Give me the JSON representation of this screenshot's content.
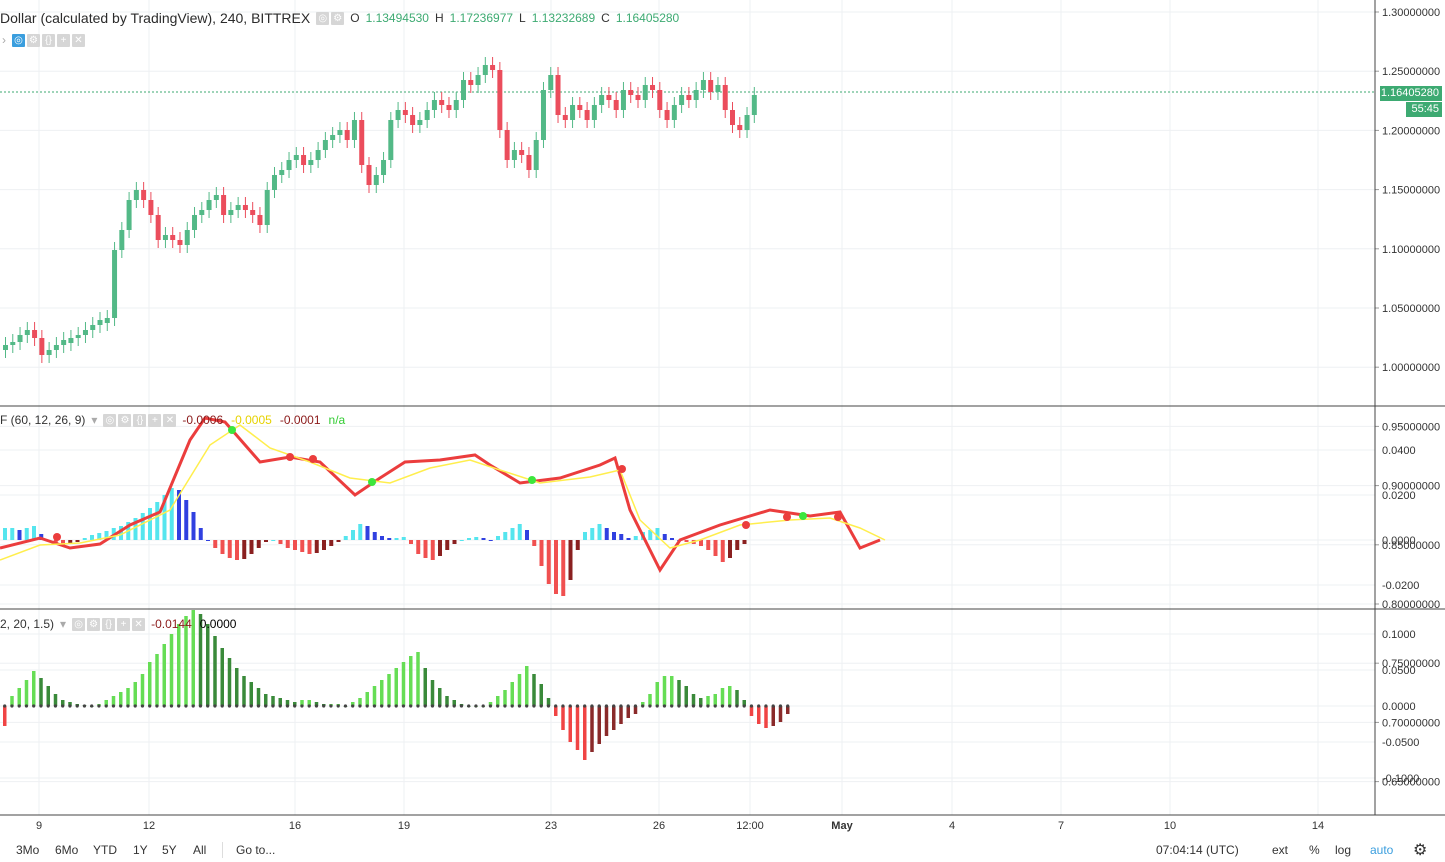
{
  "main": {
    "title": "Dollar (calculated by TradingView), 240, BITTREX",
    "ohlc": {
      "o_label": "O",
      "o": "1.13494530",
      "h_label": "H",
      "h": "1.17236977",
      "l_label": "L",
      "l": "1.13232689",
      "c_label": "C",
      "c": "1.16405280"
    },
    "price_tag": "1.16405280",
    "countdown": "55:45",
    "price_axis": [
      "1.30000000",
      "1.25000000",
      "1.20000000",
      "1.15000000",
      "1.10000000",
      "1.05000000",
      "1.00000000",
      "0.95000000",
      "0.90000000",
      "0.85000000",
      "0.80000000",
      "0.75000000",
      "0.70000000",
      "0.65000000"
    ]
  },
  "macd_panel": {
    "title": "F (60, 12, 26, 9)",
    "values": [
      "-0.0006",
      "-0.0005",
      "-0.0001",
      "n/a"
    ],
    "value_colors": [
      "#8b1a1a",
      "#e6d200",
      "#8b1a1a",
      "#33cc33"
    ],
    "axis": [
      "0.0400",
      "0.0200",
      "0.0000",
      "-0.0200"
    ]
  },
  "third_panel": {
    "title": "2, 20, 1.5)",
    "values": [
      "-0.0144",
      "0.0000"
    ],
    "value_colors": [
      "#8b1a1a",
      "#000000"
    ],
    "axis": [
      "0.1000",
      "0.0500",
      "0.0000",
      "-0.0500",
      "-0.1000"
    ]
  },
  "time_axis": [
    "9",
    "12",
    "16",
    "19",
    "23",
    "26",
    "12:00",
    "May",
    "4",
    "7",
    "10",
    "14"
  ],
  "bottom": {
    "ranges": [
      "3Mo",
      "6Mo",
      "YTD",
      "1Y",
      "5Y",
      "All"
    ],
    "goto": "Go to...",
    "clock": "07:04:14 (UTC)",
    "ext": "ext",
    "percent": "%",
    "log": "log",
    "auto": "auto",
    "settings_icon": "gear-icon"
  },
  "colors": {
    "up": "#53b987",
    "down": "#eb4d5c",
    "macd_up": "#3ce63c",
    "macd_down": "#eb3d3d",
    "signal": "#ffee4d",
    "price_line": "#3daa72",
    "auto": "#3a9ede"
  }
}
